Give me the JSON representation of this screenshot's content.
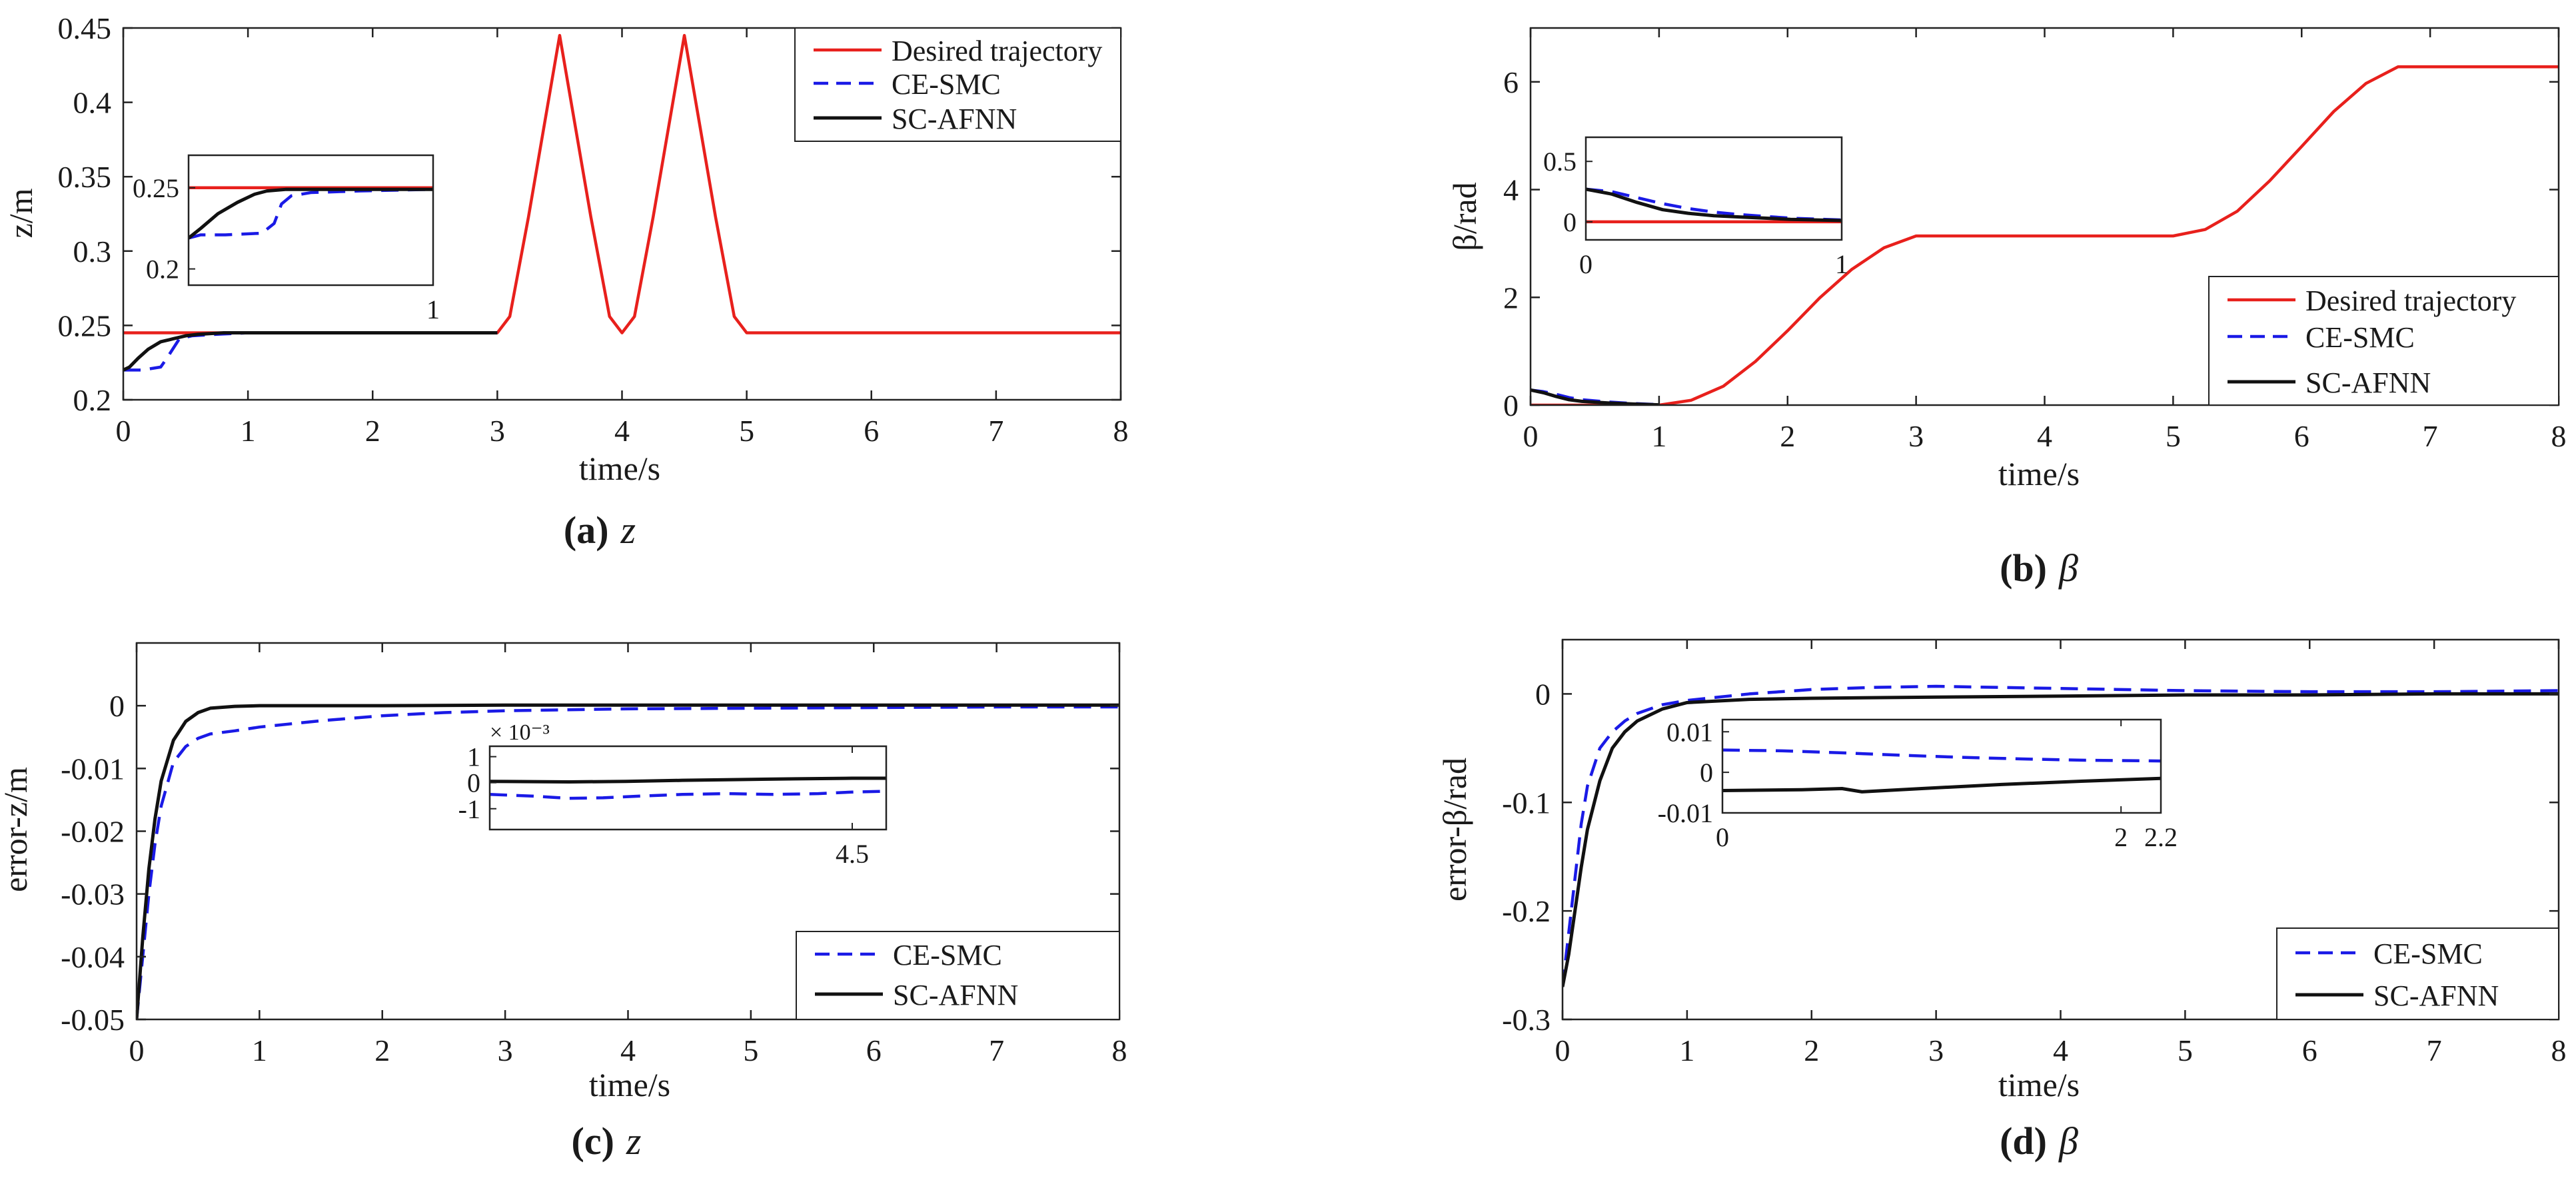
{
  "colors": {
    "desired": "#e8201c",
    "ce_smc": "#1a1ae6",
    "sc_afnn": "#111111",
    "axis": "#222222"
  },
  "chart_data": [
    {
      "id": "a",
      "type": "line",
      "caption": {
        "letter": "(a)",
        "symbol": "z"
      },
      "xlabel": "time/s",
      "ylabel": "z/m",
      "xlim": [
        0,
        8
      ],
      "ylim": [
        0.2,
        0.45
      ],
      "xticks": [
        0,
        1,
        2,
        3,
        4,
        5,
        6,
        7,
        8
      ],
      "xtick_labels": [
        "0",
        "1",
        "2",
        "3",
        "4",
        "5",
        "6",
        "7",
        "8"
      ],
      "yticks": [
        0.2,
        0.25,
        0.3,
        0.35,
        0.4,
        0.45
      ],
      "ytick_labels": [
        "0.2",
        "0.25",
        "0.3",
        "0.35",
        "0.4",
        "0.45"
      ],
      "legend": {
        "position": "top-right",
        "entries": [
          "Desired trajectory",
          "CE-SMC",
          "SC-AFNN"
        ]
      },
      "series": [
        {
          "name": "Desired trajectory",
          "x": [
            0,
            3,
            3.1,
            3.25,
            3.5,
            3.75,
            3.9,
            4,
            4.1,
            4.25,
            4.5,
            4.75,
            4.9,
            5,
            8
          ],
          "y": [
            0.245,
            0.245,
            0.256,
            0.323,
            0.445,
            0.323,
            0.256,
            0.245,
            0.256,
            0.323,
            0.445,
            0.323,
            0.256,
            0.245,
            0.245
          ]
        },
        {
          "name": "CE-SMC",
          "x": [
            0,
            0.15,
            0.3,
            0.35,
            0.45,
            0.55,
            0.75,
            1,
            1.5,
            3
          ],
          "y": [
            0.22,
            0.22,
            0.222,
            0.228,
            0.241,
            0.243,
            0.244,
            0.245,
            0.245,
            0.245
          ]
        },
        {
          "name": "SC-AFNN",
          "x": [
            0,
            0.05,
            0.12,
            0.2,
            0.3,
            0.4,
            0.5,
            0.6,
            0.8,
            1,
            3
          ],
          "y": [
            0.22,
            0.222,
            0.228,
            0.234,
            0.239,
            0.241,
            0.243,
            0.244,
            0.245,
            0.245,
            0.245
          ]
        }
      ],
      "inset": {
        "xlim": [
          0,
          1
        ],
        "ylim": [
          0.19,
          0.27
        ],
        "xticks": [
          1
        ],
        "xtick_labels": [
          "1"
        ],
        "yticks": [
          0.2,
          0.25
        ],
        "ytick_labels": [
          "0.2",
          "0.25"
        ],
        "series": [
          {
            "name": "Desired trajectory",
            "x": [
              0,
              1
            ],
            "y": [
              0.25,
              0.25
            ]
          },
          {
            "name": "CE-SMC",
            "x": [
              0,
              0.05,
              0.15,
              0.3,
              0.35,
              0.38,
              0.42,
              0.5,
              0.7,
              1
            ],
            "y": [
              0.219,
              0.221,
              0.221,
              0.222,
              0.228,
              0.24,
              0.245,
              0.247,
              0.248,
              0.249
            ]
          },
          {
            "name": "SC-AFNN",
            "x": [
              0,
              0.05,
              0.12,
              0.2,
              0.27,
              0.32,
              0.4,
              0.5,
              0.7,
              1
            ],
            "y": [
              0.219,
              0.225,
              0.234,
              0.241,
              0.246,
              0.248,
              0.249,
              0.249,
              0.249,
              0.249
            ]
          }
        ]
      }
    },
    {
      "id": "b",
      "type": "line",
      "caption": {
        "letter": "(b)",
        "symbol": "β"
      },
      "xlabel": "time/s",
      "ylabel": "β/rad",
      "xlim": [
        0,
        8
      ],
      "ylim": [
        0,
        7
      ],
      "xticks": [
        0,
        1,
        2,
        3,
        4,
        5,
        6,
        7,
        8
      ],
      "xtick_labels": [
        "0",
        "1",
        "2",
        "3",
        "4",
        "5",
        "6",
        "7",
        "8"
      ],
      "yticks": [
        0,
        2,
        4,
        6
      ],
      "ytick_labels": [
        "0",
        "2",
        "4",
        "6"
      ],
      "legend": {
        "position": "bottom-right",
        "entries": [
          "Desired trajectory",
          "CE-SMC",
          "SC-AFNN"
        ]
      },
      "series": [
        {
          "name": "Desired trajectory",
          "x": [
            0,
            1,
            1.25,
            1.5,
            1.75,
            2,
            2.25,
            2.5,
            2.75,
            3,
            5,
            5.25,
            5.5,
            5.75,
            6,
            6.25,
            6.5,
            6.75,
            7,
            8
          ],
          "y": [
            0,
            0,
            0.09,
            0.35,
            0.81,
            1.38,
            1.99,
            2.52,
            2.92,
            3.14,
            3.14,
            3.26,
            3.6,
            4.16,
            4.8,
            5.45,
            5.97,
            6.28,
            6.28,
            6.28
          ]
        },
        {
          "name": "CE-SMC",
          "x": [
            0,
            0.1,
            0.2,
            0.3,
            0.4,
            0.6,
            0.8,
            1
          ],
          "y": [
            0.28,
            0.25,
            0.2,
            0.14,
            0.1,
            0.06,
            0.03,
            0.01
          ]
        },
        {
          "name": "SC-AFNN",
          "x": [
            0,
            0.1,
            0.2,
            0.3,
            0.4,
            0.6,
            0.8,
            1
          ],
          "y": [
            0.28,
            0.23,
            0.16,
            0.1,
            0.07,
            0.04,
            0.02,
            0.005
          ]
        }
      ],
      "inset": {
        "xlim": [
          0,
          1
        ],
        "ylim": [
          -0.15,
          0.7
        ],
        "xticks": [
          0,
          1
        ],
        "xtick_labels": [
          "0",
          "1"
        ],
        "yticks": [
          0,
          0.5
        ],
        "ytick_labels": [
          "0",
          "0.5"
        ],
        "series": [
          {
            "name": "Desired trajectory",
            "x": [
              0,
              1
            ],
            "y": [
              0,
              0
            ]
          },
          {
            "name": "CE-SMC",
            "x": [
              0,
              0.1,
              0.2,
              0.3,
              0.4,
              0.5,
              0.6,
              0.8,
              1
            ],
            "y": [
              0.27,
              0.25,
              0.2,
              0.15,
              0.11,
              0.08,
              0.06,
              0.03,
              0.015
            ]
          },
          {
            "name": "SC-AFNN",
            "x": [
              0,
              0.1,
              0.2,
              0.3,
              0.4,
              0.5,
              0.6,
              0.8,
              1
            ],
            "y": [
              0.27,
              0.23,
              0.16,
              0.1,
              0.07,
              0.05,
              0.04,
              0.02,
              0.01
            ]
          }
        ]
      }
    },
    {
      "id": "c",
      "type": "line",
      "caption": {
        "letter": "(c)",
        "symbol": "z"
      },
      "xlabel": "time/s",
      "ylabel": "error-z/m",
      "xlim": [
        0,
        8
      ],
      "ylim": [
        -0.05,
        0.01
      ],
      "xticks": [
        0,
        1,
        2,
        3,
        4,
        5,
        6,
        7,
        8
      ],
      "xtick_labels": [
        "0",
        "1",
        "2",
        "3",
        "4",
        "5",
        "6",
        "7",
        "8"
      ],
      "yticks": [
        -0.05,
        -0.04,
        -0.03,
        -0.02,
        -0.01,
        0
      ],
      "ytick_labels": [
        "-0.05",
        "-0.04",
        "-0.03",
        "-0.02",
        "-0.01",
        "0"
      ],
      "legend": {
        "position": "bottom-right",
        "entries": [
          "CE-SMC",
          "SC-AFNN"
        ]
      },
      "series": [
        {
          "name": "CE-SMC",
          "x": [
            0,
            0.05,
            0.1,
            0.15,
            0.2,
            0.3,
            0.4,
            0.5,
            0.6,
            0.8,
            1,
            1.5,
            2,
            2.5,
            3,
            4,
            5,
            6,
            7,
            8
          ],
          "y": [
            -0.05,
            -0.04,
            -0.03,
            -0.022,
            -0.016,
            -0.009,
            -0.0065,
            -0.0052,
            -0.0045,
            -0.004,
            -0.0034,
            -0.0024,
            -0.0016,
            -0.0011,
            -0.0008,
            -0.0005,
            -0.0004,
            -0.0003,
            -0.0002,
            -0.0002
          ]
        },
        {
          "name": "SC-AFNN",
          "x": [
            0,
            0.05,
            0.1,
            0.15,
            0.2,
            0.3,
            0.4,
            0.5,
            0.6,
            0.8,
            1,
            2,
            3,
            4,
            5,
            6,
            7,
            8
          ],
          "y": [
            -0.05,
            -0.037,
            -0.026,
            -0.018,
            -0.012,
            -0.0055,
            -0.0025,
            -0.0011,
            -0.0004,
            -0.0001,
            0,
            0,
            0.0001,
            0.0001,
            0.0001,
            0.0001,
            0.0001,
            0.0001
          ]
        }
      ],
      "inset": {
        "xlim": [
          1.3,
          4.8
        ],
        "ylim": [
          -1.8,
          1.4
        ],
        "exponent": "× 10⁻³",
        "xticks": [
          4.5
        ],
        "xtick_labels": [
          "4.5"
        ],
        "yticks": [
          -1,
          0,
          1
        ],
        "ytick_labels": [
          "-1",
          "0",
          "1"
        ],
        "series": [
          {
            "name": "CE-SMC",
            "x": [
              1.3,
              1.7,
              2,
              2.3,
              2.6,
              3,
              3.4,
              3.8,
              4.2,
              4.5,
              4.8
            ],
            "y": [
              -0.45,
              -0.52,
              -0.6,
              -0.58,
              -0.52,
              -0.45,
              -0.42,
              -0.45,
              -0.42,
              -0.36,
              -0.33
            ]
          },
          {
            "name": "SC-AFNN",
            "x": [
              1.3,
              2,
              2.5,
              3,
              3.5,
              4,
              4.5,
              4.8
            ],
            "y": [
              0.05,
              0.03,
              0.05,
              0.09,
              0.12,
              0.15,
              0.17,
              0.17
            ]
          }
        ]
      }
    },
    {
      "id": "d",
      "type": "line",
      "caption": {
        "letter": "(d)",
        "symbol": "β"
      },
      "xlabel": "time/s",
      "ylabel": "error-β/rad",
      "xlim": [
        0,
        8
      ],
      "ylim": [
        -0.3,
        0.05
      ],
      "xticks": [
        0,
        1,
        2,
        3,
        4,
        5,
        6,
        7,
        8
      ],
      "xtick_labels": [
        "0",
        "1",
        "2",
        "3",
        "4",
        "5",
        "6",
        "7",
        "8"
      ],
      "yticks": [
        -0.3,
        -0.2,
        -0.1,
        0
      ],
      "ytick_labels": [
        "-0.3",
        "-0.2",
        "-0.1",
        "0"
      ],
      "legend": {
        "position": "bottom-right",
        "entries": [
          "CE-SMC",
          "SC-AFNN"
        ]
      },
      "series": [
        {
          "name": "CE-SMC",
          "x": [
            0,
            0.05,
            0.1,
            0.15,
            0.2,
            0.3,
            0.4,
            0.5,
            0.6,
            0.8,
            1,
            1.5,
            2,
            2.5,
            3,
            4,
            5,
            6,
            7,
            8
          ],
          "y": [
            -0.27,
            -0.22,
            -0.17,
            -0.12,
            -0.085,
            -0.05,
            -0.035,
            -0.025,
            -0.018,
            -0.01,
            -0.006,
            0,
            0.004,
            0.006,
            0.007,
            0.005,
            0.003,
            0.002,
            0.002,
            0.003
          ]
        },
        {
          "name": "SC-AFNN",
          "x": [
            0,
            0.05,
            0.1,
            0.15,
            0.2,
            0.3,
            0.4,
            0.5,
            0.6,
            0.8,
            1,
            1.5,
            2,
            3,
            4,
            5,
            6,
            7,
            8
          ],
          "y": [
            -0.27,
            -0.24,
            -0.2,
            -0.16,
            -0.125,
            -0.08,
            -0.05,
            -0.035,
            -0.025,
            -0.014,
            -0.008,
            -0.005,
            -0.004,
            -0.003,
            -0.002,
            -0.001,
            -0.001,
            0,
            0
          ]
        }
      ],
      "inset": {
        "xlim": [
          0,
          2.2
        ],
        "ylim": [
          -0.01,
          0.013
        ],
        "xticks": [
          0,
          2,
          2.2
        ],
        "xtick_labels": [
          "0",
          "2",
          "2.2"
        ],
        "yticks": [
          -0.01,
          0,
          0.01
        ],
        "ytick_labels": [
          "-0.01",
          "0",
          "0.01"
        ],
        "series": [
          {
            "name": "CE-SMC",
            "x": [
              0,
              0.3,
              0.6,
              0.9,
              1.2,
              1.5,
              1.8,
              2.2
            ],
            "y": [
              0.0055,
              0.0053,
              0.0048,
              0.0042,
              0.0037,
              0.0033,
              0.003,
              0.0028
            ]
          },
          {
            "name": "SC-AFNN",
            "x": [
              0,
              0.4,
              0.6,
              0.7,
              1.0,
              1.4,
              1.8,
              2.2
            ],
            "y": [
              -0.0045,
              -0.0043,
              -0.004,
              -0.0048,
              -0.004,
              -0.003,
              -0.0022,
              -0.0015
            ]
          }
        ]
      }
    }
  ]
}
